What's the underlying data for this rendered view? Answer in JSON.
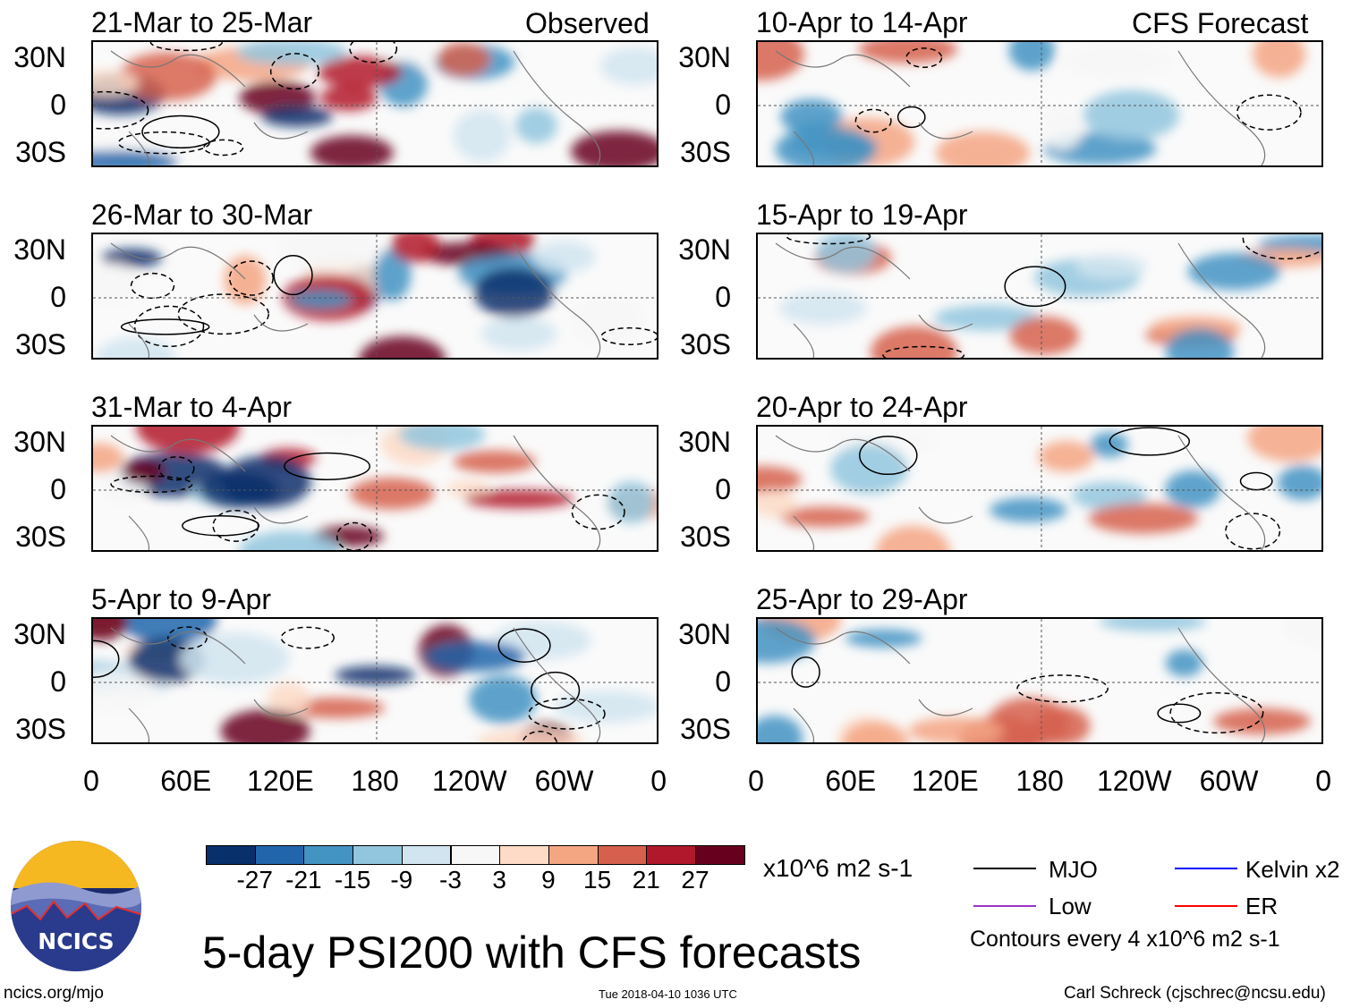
{
  "header": {
    "left_label": "Observed",
    "right_label": "CFS Forecast"
  },
  "observed_panels": [
    {
      "title": "21-Mar to 25-Mar"
    },
    {
      "title": "26-Mar to 30-Mar"
    },
    {
      "title": "31-Mar to 4-Apr"
    },
    {
      "title": "5-Apr to 9-Apr"
    }
  ],
  "forecast_panels": [
    {
      "title": "10-Apr to 14-Apr"
    },
    {
      "title": "15-Apr to 19-Apr"
    },
    {
      "title": "20-Apr to 24-Apr"
    },
    {
      "title": "25-Apr to 29-Apr"
    }
  ],
  "lat_labels": [
    "30N",
    "0",
    "30S"
  ],
  "lon_labels": [
    "0",
    "60E",
    "120E",
    "180",
    "120W",
    "60W",
    "0"
  ],
  "colorbar": {
    "colors": [
      "#08306b",
      "#2166ac",
      "#4393c3",
      "#92c5de",
      "#d1e5f0",
      "#f7f7f7",
      "#fddbc7",
      "#f4a582",
      "#d6604d",
      "#b2182b",
      "#67001f"
    ],
    "ticks": [
      "-27",
      "-21",
      "-15",
      "-9",
      "-3",
      "3",
      "9",
      "15",
      "21",
      "27"
    ],
    "units": "x10^6 m2 s-1"
  },
  "legend": {
    "items": [
      {
        "label": "MJO",
        "color": "#000000"
      },
      {
        "label": "Kelvin x2",
        "color": "#0000ff"
      },
      {
        "label": "Low",
        "color": "#9932cc"
      },
      {
        "label": "ER",
        "color": "#ff0000"
      }
    ],
    "note": "Contours every 4 x10^6 m2 s-1"
  },
  "title": "5-day PSI200 with CFS forecasts",
  "logo_text": "NCICS",
  "footer": {
    "left": "ncics.org/mjo",
    "center": "Tue 2018-04-10 1036 UTC",
    "right": "Carl Schreck (cjschrec@ncsu.edu)"
  }
}
